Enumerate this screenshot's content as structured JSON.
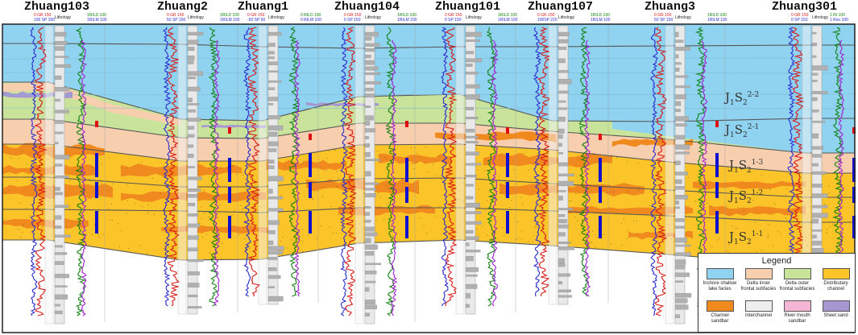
{
  "wells": [
    {
      "name": "Zhuang103",
      "hdr": {
        "gr": "0  GR  150",
        "sp": "100  SP  200",
        "lith": "Lithology",
        "rlld": "1RILD 100",
        "rllm": "1RILM 100"
      }
    },
    {
      "name": "Zhuang2",
      "hdr": {
        "gr": "0  GR  150",
        "sp": "50  SP  150",
        "lith": "Lithology",
        "rlld": "1RILD 100",
        "rllm": "1RILM 100"
      }
    },
    {
      "name": "Zhuang1",
      "hdr": {
        "gr": "0  GR  150",
        "sp": "-50  SP  50",
        "lith": "Lithology",
        "rlld": "0  RILD 100",
        "rllm": "0  RILM 100"
      }
    },
    {
      "name": "Zhuang104",
      "hdr": {
        "gr": "0  GR  150",
        "sp": "0  SP  150",
        "lith": "Lithology",
        "rlld": "1RILD 100",
        "rllm": "1RILM 100"
      }
    },
    {
      "name": "Zhuang101",
      "hdr": {
        "gr": "0  GR  150",
        "sp": "0  SP  150",
        "lith": "Lithology",
        "rlld": "1RILD 100",
        "rllm": "1RILM 100"
      }
    },
    {
      "name": "Zhuang107",
      "hdr": {
        "gr": "0  GR  150",
        "sp": "100SP  220",
        "lith": "Lithology",
        "rlld": "1RILD 100",
        "rllm": "1RILM 100"
      }
    },
    {
      "name": "Zhuang3",
      "hdr": {
        "gr": "0  GR  150",
        "sp": "50  SP  150",
        "lith": "Lithology",
        "rlld": "1RILD 100",
        "rllm": "1RILM 100"
      }
    },
    {
      "name": "Zhuang301",
      "hdr": {
        "gr": "0  GR  150",
        "sp": "0  SP  150",
        "lith": "Lithology",
        "rlld": "1  Rt  100",
        "rllm": "1  Rxo 100"
      }
    }
  ],
  "units": [
    {
      "base": "J",
      "sub1": "1",
      "mid": "S",
      "sub2": "2",
      "sup": "2-2"
    },
    {
      "base": "J",
      "sub1": "1",
      "mid": "S",
      "sub2": "2",
      "sup": "2-1"
    },
    {
      "base": "J",
      "sub1": "1",
      "mid": "S",
      "sub2": "2",
      "sup": "1-3"
    },
    {
      "base": "J",
      "sub1": "1",
      "mid": "S",
      "sub2": "2",
      "sup": "1-2"
    },
    {
      "base": "J",
      "sub1": "1",
      "mid": "S",
      "sub2": "2",
      "sup": "1-1"
    }
  ],
  "legend": {
    "title": "Legend",
    "items": [
      {
        "label": "Inshore shallow lake facies",
        "color": "#8fd3f0"
      },
      {
        "label": "Delta inner frontal subfacies",
        "color": "#f7cfae"
      },
      {
        "label": "Delta outer frontal subfacies",
        "color": "#c9e49a"
      },
      {
        "label": "Distributary channel",
        "color": "#fbc52a"
      },
      {
        "label": "Channel sandbar",
        "color": "#f08a1e"
      },
      {
        "label": "Interchannel",
        "color": "#eeeeee"
      },
      {
        "label": "River mouth sandbar",
        "color": "#f4b6d4"
      },
      {
        "label": "Sheet sand",
        "color": "#a796d2"
      }
    ]
  },
  "colors": {
    "lake": "#8fd3f0",
    "inner_front": "#f7cfae",
    "outer_front": "#c9e49a",
    "distributary": "#fbc52a",
    "sandbar": "#f08a1e",
    "sheet_sand": "#a796d2",
    "boundary": "#555555",
    "gr_curve": "#d81818",
    "sp_curve": "#2a2ad0",
    "res_curve": "#108010",
    "res2_curve": "#a020d0",
    "lithology": "#b0b0b0",
    "perforation": "#1010d0",
    "perforation_red": "#e01010"
  }
}
